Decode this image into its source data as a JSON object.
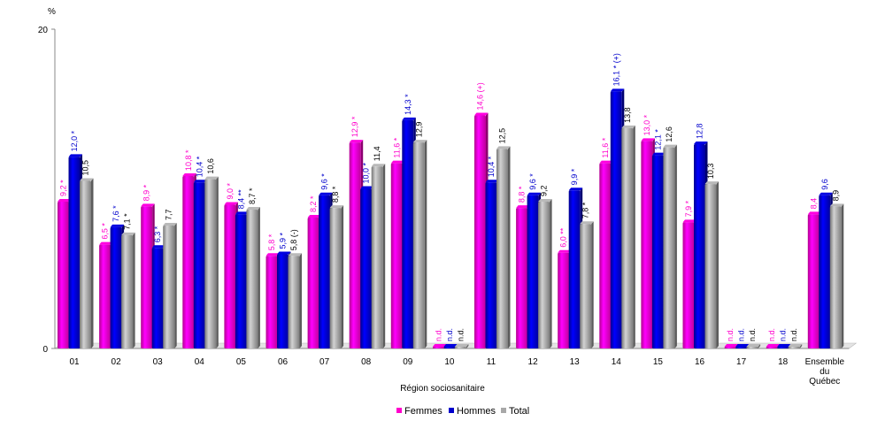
{
  "chart_data": {
    "type": "bar",
    "ylabel": "%",
    "xlabel": "Région sociosanitaire",
    "ylim": [
      0,
      20
    ],
    "yticks": [
      "0",
      "20"
    ],
    "categories": [
      "01",
      "02",
      "03",
      "04",
      "05",
      "06",
      "07",
      "08",
      "09",
      "10",
      "11",
      "12",
      "13",
      "14",
      "15",
      "16",
      "17",
      "18",
      "Ensemble du Québec"
    ],
    "series": [
      {
        "name": "Femmes",
        "color": "#ff00cc",
        "values": [
          9.2,
          6.5,
          8.9,
          10.8,
          9.0,
          5.8,
          8.2,
          12.9,
          11.6,
          0,
          14.6,
          8.8,
          6.0,
          11.6,
          13.0,
          7.9,
          0,
          0,
          8.4
        ],
        "labels": [
          "9,2 *",
          "6,5 *",
          "8,9 *",
          "10,8 *",
          "9,0 *",
          "5,8 *",
          "8,2 *",
          "12,9 *",
          "11,6 *",
          "n.d.",
          "14,6 (+)",
          "8,8 *",
          "6,0 **",
          "11,6 *",
          "13,0 *",
          "7,9 *",
          "n.d.",
          "n.d.",
          "8,4"
        ]
      },
      {
        "name": "Hommes",
        "color": "#0000cc",
        "values": [
          12.0,
          7.6,
          6.3,
          10.4,
          8.4,
          5.9,
          9.6,
          10.0,
          14.3,
          0,
          10.4,
          9.6,
          9.9,
          16.1,
          12.1,
          12.8,
          0,
          0,
          9.6
        ],
        "labels": [
          "12,0 *",
          "7,6 *",
          "6,3 *",
          "10,4 *",
          "8,4 **",
          "5,9 *",
          "9,6 *",
          "10,0 *",
          "14,3 *",
          "n.d.",
          "10,4 *",
          "9,6 *",
          "9,9 *",
          "16,1 * (+)",
          "12,1 *",
          "12,8",
          "n.d.",
          "n.d.",
          "9,6"
        ]
      },
      {
        "name": "Total",
        "color": "#a8a8a8",
        "values": [
          10.5,
          7.1,
          7.7,
          10.6,
          8.7,
          5.8,
          8.8,
          11.4,
          12.9,
          0,
          12.5,
          9.2,
          7.8,
          13.8,
          12.6,
          10.3,
          0,
          0,
          8.9
        ],
        "labels": [
          "10,5",
          "7,1 *",
          "7,7",
          "10,6",
          "8,7 *",
          "5,8 (-)",
          "8,8 *",
          "11,4",
          "12,9",
          "n.d.",
          "12,5",
          "9,2",
          "7,8 *",
          "13,8",
          "12,6",
          "10,3",
          "n.d.",
          "n.d.",
          "8,9"
        ]
      }
    ],
    "legend_position": "bottom-center",
    "grid": false
  }
}
